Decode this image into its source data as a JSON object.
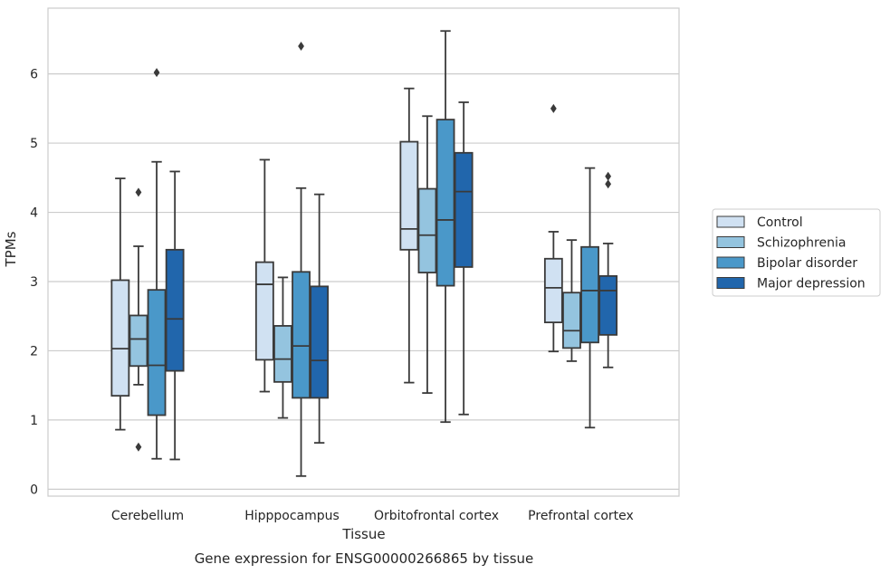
{
  "chart_data": {
    "type": "boxplot",
    "title": "Gene expression for ENSG00000266865 by tissue",
    "xlabel": "Tissue",
    "ylabel": "TPMs",
    "ylim": [
      -0.1,
      6.95
    ],
    "yticks": [
      0,
      1,
      2,
      3,
      4,
      5,
      6
    ],
    "grid": "horizontal",
    "legend_position": "right",
    "categories": [
      "Cerebellum",
      "Hipppocampus",
      "Orbitofrontal cortex",
      "Prefrontal cortex"
    ],
    "series": [
      {
        "name": "Control",
        "color": "#d0e1f2",
        "boxes": [
          {
            "whislo": 0.86,
            "q1": 1.35,
            "med": 2.03,
            "q3": 3.02,
            "whishi": 4.49,
            "fliers": []
          },
          {
            "whislo": 1.41,
            "q1": 1.87,
            "med": 2.96,
            "q3": 3.28,
            "whishi": 4.76,
            "fliers": []
          },
          {
            "whislo": 1.54,
            "q1": 3.46,
            "med": 3.76,
            "q3": 5.02,
            "whishi": 5.79,
            "fliers": []
          },
          {
            "whislo": 1.99,
            "q1": 2.41,
            "med": 2.91,
            "q3": 3.33,
            "whishi": 3.72,
            "fliers": [
              5.5
            ]
          }
        ]
      },
      {
        "name": "Schizophrenia",
        "color": "#94c4df",
        "boxes": [
          {
            "whislo": 1.51,
            "q1": 1.78,
            "med": 2.17,
            "q3": 2.51,
            "whishi": 3.51,
            "fliers": [
              4.29,
              0.61
            ]
          },
          {
            "whislo": 1.03,
            "q1": 1.55,
            "med": 1.88,
            "q3": 2.36,
            "whishi": 3.06,
            "fliers": []
          },
          {
            "whislo": 1.39,
            "q1": 3.13,
            "med": 3.67,
            "q3": 4.34,
            "whishi": 5.39,
            "fliers": []
          },
          {
            "whislo": 1.85,
            "q1": 2.04,
            "med": 2.29,
            "q3": 2.84,
            "whishi": 3.6,
            "fliers": []
          }
        ]
      },
      {
        "name": "Bipolar disorder",
        "color": "#4a98c9",
        "boxes": [
          {
            "whislo": 0.44,
            "q1": 1.07,
            "med": 1.79,
            "q3": 2.88,
            "whishi": 4.73,
            "fliers": [
              6.02
            ]
          },
          {
            "whislo": 0.19,
            "q1": 1.32,
            "med": 2.07,
            "q3": 3.14,
            "whishi": 4.35,
            "fliers": [
              6.4
            ]
          },
          {
            "whislo": 0.97,
            "q1": 2.94,
            "med": 3.89,
            "q3": 5.34,
            "whishi": 6.62,
            "fliers": []
          },
          {
            "whislo": 0.89,
            "q1": 2.12,
            "med": 2.87,
            "q3": 3.5,
            "whishi": 4.64,
            "fliers": []
          }
        ]
      },
      {
        "name": "Major depression",
        "color": "#2166ac",
        "boxes": [
          {
            "whislo": 0.43,
            "q1": 1.71,
            "med": 2.46,
            "q3": 3.46,
            "whishi": 4.59,
            "fliers": []
          },
          {
            "whislo": 0.67,
            "q1": 1.32,
            "med": 1.86,
            "q3": 2.93,
            "whishi": 4.26,
            "fliers": []
          },
          {
            "whislo": 1.08,
            "q1": 3.21,
            "med": 4.3,
            "q3": 4.86,
            "whishi": 5.59,
            "fliers": []
          },
          {
            "whislo": 1.76,
            "q1": 2.23,
            "med": 2.87,
            "q3": 3.08,
            "whishi": 3.55,
            "fliers": [
              4.52,
              4.41
            ]
          }
        ]
      }
    ]
  }
}
